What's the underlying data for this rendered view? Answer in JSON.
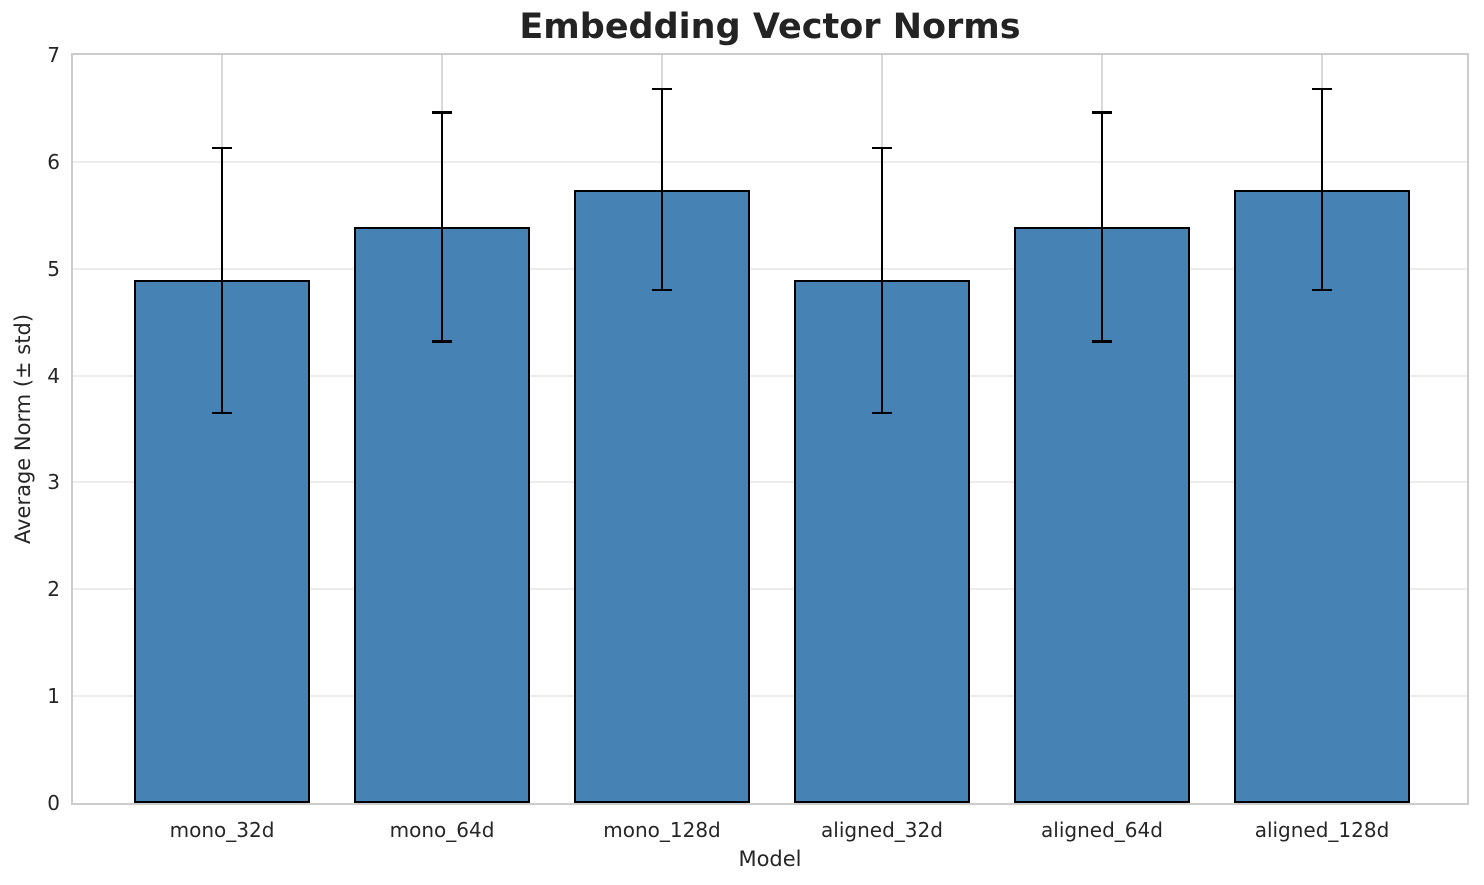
{
  "chart_data": {
    "type": "bar",
    "title": "Embedding Vector Norms",
    "xlabel": "Model",
    "ylabel": "Average Norm (± std)",
    "categories": [
      "mono_32d",
      "mono_64d",
      "mono_128d",
      "aligned_32d",
      "aligned_64d",
      "aligned_128d"
    ],
    "values": [
      4.89,
      5.39,
      5.74,
      4.89,
      5.39,
      5.74
    ],
    "errors": [
      1.24,
      1.07,
      0.94,
      1.24,
      1.07,
      0.94
    ],
    "ylim": [
      0,
      7
    ],
    "yticks": [
      0,
      1,
      2,
      3,
      4,
      5,
      6,
      7
    ],
    "grid": true,
    "legend": "none",
    "colors": {
      "bar_fill": "#4682b4",
      "bar_edge": "#000000",
      "error_bar": "#000000",
      "grid_horizontal": "#ececec",
      "grid_vertical": "#d9d9d9",
      "spine": "#cccccc",
      "text": "#262626",
      "title": "#232323",
      "background": "#ffffff"
    }
  }
}
